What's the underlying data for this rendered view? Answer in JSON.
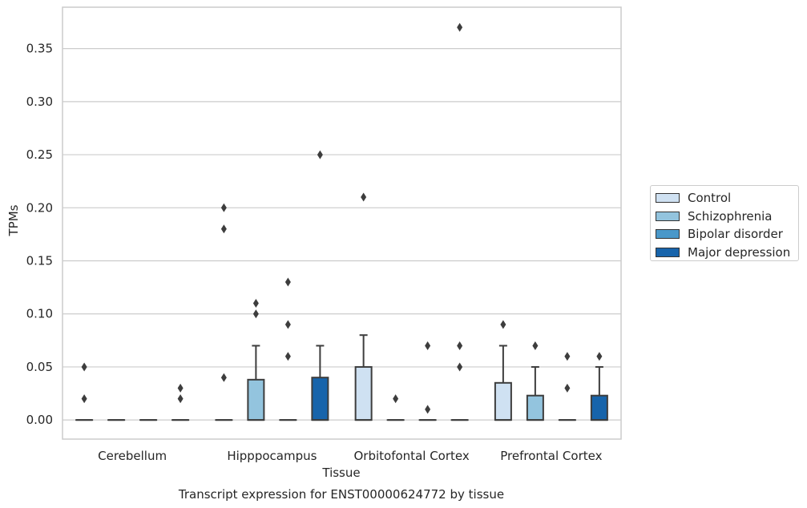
{
  "chart_data": {
    "type": "box",
    "title": "Transcript expression for ENST00000624772 by tissue",
    "xlabel": "Tissue",
    "ylabel": "TPMs",
    "ylim": [
      -0.018,
      0.389
    ],
    "yticks": [
      "0.00",
      "0.05",
      "0.10",
      "0.15",
      "0.20",
      "0.25",
      "0.30",
      "0.35"
    ],
    "grid": true,
    "legend_position": "right",
    "categories": [
      "Cerebellum",
      "Hipppocampus",
      "Orbitofontal Cortex",
      "Prefrontal Cortex"
    ],
    "series": [
      {
        "name": "Control",
        "color": "#cfe1f2",
        "boxes": [
          {
            "q1": 0,
            "median": 0,
            "q3": 0,
            "whisker_low": 0,
            "whisker_high": 0,
            "outliers": [
              0.02,
              0.05
            ]
          },
          {
            "q1": 0,
            "median": 0,
            "q3": 0,
            "whisker_low": 0,
            "whisker_high": 0,
            "outliers": [
              0.04,
              0.18,
              0.2
            ]
          },
          {
            "q1": 0,
            "median": 0,
            "q3": 0.05,
            "whisker_low": 0,
            "whisker_high": 0.08,
            "outliers": [
              0.21
            ]
          },
          {
            "q1": 0,
            "median": 0,
            "q3": 0.035,
            "whisker_low": 0,
            "whisker_high": 0.07,
            "outliers": [
              0.09
            ]
          }
        ]
      },
      {
        "name": "Schizophrenia",
        "color": "#93c4de",
        "boxes": [
          {
            "q1": 0,
            "median": 0,
            "q3": 0,
            "whisker_low": 0,
            "whisker_high": 0,
            "outliers": []
          },
          {
            "q1": 0,
            "median": 0,
            "q3": 0.038,
            "whisker_low": 0,
            "whisker_high": 0.07,
            "outliers": [
              0.1,
              0.11
            ]
          },
          {
            "q1": 0,
            "median": 0,
            "q3": 0,
            "whisker_low": 0,
            "whisker_high": 0,
            "outliers": [
              0.02
            ]
          },
          {
            "q1": 0,
            "median": 0,
            "q3": 0.023,
            "whisker_low": 0,
            "whisker_high": 0.05,
            "outliers": [
              0.07
            ]
          }
        ]
      },
      {
        "name": "Bipolar disorder",
        "color": "#4a98c9",
        "boxes": [
          {
            "q1": 0,
            "median": 0,
            "q3": 0,
            "whisker_low": 0,
            "whisker_high": 0,
            "outliers": []
          },
          {
            "q1": 0,
            "median": 0,
            "q3": 0,
            "whisker_low": 0,
            "whisker_high": 0,
            "outliers": [
              0.06,
              0.09,
              0.13
            ]
          },
          {
            "q1": 0,
            "median": 0,
            "q3": 0,
            "whisker_low": 0,
            "whisker_high": 0,
            "outliers": [
              0.01,
              0.07
            ]
          },
          {
            "q1": 0,
            "median": 0,
            "q3": 0,
            "whisker_low": 0,
            "whisker_high": 0,
            "outliers": [
              0.03,
              0.06
            ]
          }
        ]
      },
      {
        "name": "Major depression",
        "color": "#1764ab",
        "boxes": [
          {
            "q1": 0,
            "median": 0,
            "q3": 0,
            "whisker_low": 0,
            "whisker_high": 0,
            "outliers": [
              0.02,
              0.03
            ]
          },
          {
            "q1": 0,
            "median": 0,
            "q3": 0.04,
            "whisker_low": 0,
            "whisker_high": 0.07,
            "outliers": [
              0.25
            ]
          },
          {
            "q1": 0,
            "median": 0,
            "q3": 0,
            "whisker_low": 0,
            "whisker_high": 0,
            "outliers": [
              0.05,
              0.07,
              0.37
            ]
          },
          {
            "q1": 0,
            "median": 0,
            "q3": 0.023,
            "whisker_low": 0,
            "whisker_high": 0.05,
            "outliers": [
              0.06
            ]
          }
        ]
      }
    ]
  }
}
